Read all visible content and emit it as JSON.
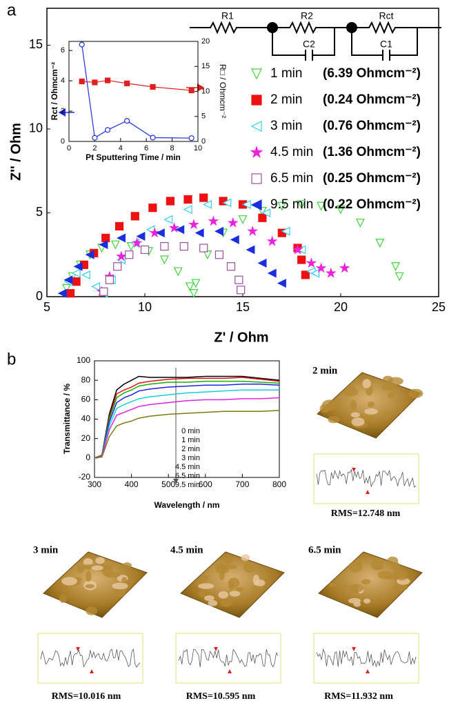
{
  "panel_labels": [
    "a",
    "b"
  ],
  "circuit": {
    "labels": [
      "R1",
      "R2",
      "Rct",
      "C2",
      "C1"
    ]
  },
  "chart_data": [
    {
      "type": "scatter",
      "x_label": "Z' / Ohm",
      "y_label": "Z'' / Ohm",
      "xlim": [
        5,
        25
      ],
      "ylim": [
        0,
        17.2
      ],
      "xticks": [
        5,
        10,
        15,
        20,
        25
      ],
      "yticks": [
        0,
        5,
        10,
        15
      ],
      "series": [
        {
          "name": "1 min",
          "resistance_label": "(6.39 Ohmcm⁻²)",
          "color": "#3fd43a",
          "marker": "tri-down",
          "filled": false,
          "x": [
            6.0,
            6.3,
            6.7,
            7.2,
            7.8,
            8.5,
            9.3,
            10.2,
            11.0,
            11.7,
            12.3,
            12.5,
            12.6,
            13.2,
            14.0,
            15.0,
            16.0,
            17.0,
            18.0,
            19.0,
            20.0,
            21.0,
            22.0,
            22.8,
            23.0
          ],
          "values": [
            0.5,
            1.2,
            1.9,
            2.5,
            2.9,
            3.1,
            3.0,
            2.7,
            2.2,
            1.5,
            0.6,
            0.2,
            0.8,
            2.5,
            3.8,
            4.6,
            5.1,
            5.4,
            5.5,
            5.4,
            5.2,
            4.4,
            3.2,
            1.8,
            1.2
          ]
        },
        {
          "name": "2 min",
          "resistance_label": "(0.24 Ohmcm⁻²)",
          "color": "#ee1111",
          "marker": "square",
          "filled": true,
          "x": [
            6.2,
            6.5,
            6.9,
            7.4,
            8.0,
            8.7,
            9.5,
            10.4,
            11.3,
            12.2,
            13.0,
            14.0,
            15.0,
            16.0,
            17.0,
            17.8,
            18.0,
            18.2
          ],
          "values": [
            0.2,
            0.9,
            1.9,
            2.6,
            3.5,
            4.2,
            4.8,
            5.3,
            5.7,
            5.8,
            5.9,
            5.7,
            5.5,
            4.7,
            3.8,
            2.9,
            2.2,
            1.3
          ]
        },
        {
          "name": "3 min",
          "resistance_label": "(0.76 Ohmcm⁻²)",
          "color": "#30d0ee",
          "marker": "tri-left",
          "filled": false,
          "x": [
            5.8,
            6.1,
            6.5,
            7.0,
            7.5,
            7.9,
            8.3,
            8.8,
            9.5,
            10.3,
            11.2,
            12.2,
            13.2,
            14.2,
            15.2,
            16.2,
            17.2,
            18.0,
            18.5,
            18.7
          ],
          "values": [
            0.2,
            0.9,
            1.4,
            1.3,
            0.6,
            0.2,
            1.0,
            2.2,
            3.2,
            4.0,
            4.6,
            5.2,
            5.5,
            5.6,
            5.5,
            5.0,
            3.9,
            2.8,
            1.5,
            1.4
          ]
        },
        {
          "name": "4.5 min",
          "resistance_label": "(1.36 Ohmcm⁻²)",
          "color": "#ee22dd",
          "marker": "star",
          "filled": true,
          "x": [
            7.8,
            8.2,
            8.8,
            9.6,
            10.5,
            11.5,
            12.5,
            13.5,
            14.5,
            15.5,
            16.5,
            17.8,
            18.5,
            19.0,
            19.5,
            20.2
          ],
          "values": [
            0.3,
            1.2,
            2.4,
            3.2,
            3.8,
            4.1,
            4.3,
            4.5,
            4.4,
            3.9,
            3.3,
            2.8,
            2.0,
            1.7,
            1.4,
            1.7
          ]
        },
        {
          "name": "6.5 min",
          "resistance_label": "(0.25 Ohmcm⁻²)",
          "color": "#9b4f9b",
          "marker": "square",
          "filled": false,
          "x": [
            7.9,
            8.2,
            8.6,
            9.2,
            10.0,
            11.0,
            12.0,
            13.0,
            13.8,
            14.4,
            14.8,
            14.9
          ],
          "values": [
            0.3,
            1.0,
            1.8,
            2.5,
            2.8,
            3.0,
            3.0,
            2.9,
            2.5,
            1.8,
            1.0,
            0.4
          ]
        },
        {
          "name": "9.5 min",
          "resistance_label": "(0.22 Ohmcm⁻²)",
          "color": "#1a2ee0",
          "marker": "tri-left",
          "filled": true,
          "x": [
            5.8,
            6.1,
            6.6,
            7.2,
            7.9,
            8.8,
            9.8,
            10.8,
            11.8,
            12.8,
            13.8,
            14.6,
            15.4,
            16.0,
            16.5,
            17.0
          ],
          "values": [
            0.2,
            1.0,
            1.8,
            2.5,
            3.1,
            3.5,
            3.6,
            3.8,
            4.0,
            3.8,
            3.9,
            3.4,
            2.8,
            2.0,
            1.4,
            0.8
          ]
        }
      ]
    },
    {
      "type": "line",
      "x_label": "Pt Sputtering Time / min",
      "y_label": "Rct / Ohmcm⁻²",
      "y2_label": "R□ / Ohmcm⁻²",
      "xlim": [
        0,
        10
      ],
      "ylim": [
        0,
        6.6
      ],
      "y2lim": [
        0,
        20
      ],
      "xticks": [
        0,
        2,
        4,
        6,
        8,
        10
      ],
      "yticks": [
        0,
        2,
        4,
        6
      ],
      "y2ticks": [
        0,
        5,
        10,
        15,
        20
      ],
      "x": [
        1,
        2,
        3,
        4.5,
        6.5,
        9.5
      ],
      "series": [
        {
          "color": "#2030e0",
          "marker": "circle",
          "filled": false,
          "values": [
            6.39,
            0.24,
            0.76,
            1.36,
            0.25,
            0.22
          ]
        },
        {
          "color": "#e02020",
          "marker": "square",
          "filled": true,
          "axis": "y2",
          "values": [
            12.0,
            11.8,
            12.2,
            11.6,
            10.9,
            10.2
          ]
        }
      ]
    },
    {
      "type": "line",
      "x_label": "Wavelength / nm",
      "y_label": "Transmittance / %",
      "xlim": [
        300,
        800
      ],
      "ylim": [
        -20,
        100
      ],
      "xticks": [
        300,
        400,
        500,
        600,
        700,
        800
      ],
      "yticks": [
        -20,
        0,
        20,
        40,
        60,
        80,
        100
      ],
      "x": [
        300,
        320,
        340,
        360,
        380,
        400,
        420,
        450,
        500,
        550,
        600,
        650,
        700,
        750,
        800
      ],
      "series": [
        {
          "name": "0 min",
          "color": "#000000",
          "values": [
            0,
            3,
            45,
            70,
            76,
            80,
            84,
            83,
            83,
            83,
            84,
            84,
            84,
            82,
            80
          ]
        },
        {
          "name": "1 min",
          "color": "#e01010",
          "values": [
            0,
            3,
            42,
            66,
            70,
            73,
            77,
            79,
            81,
            82,
            82,
            82,
            83,
            81,
            79
          ]
        },
        {
          "name": "2 min",
          "color": "#10b010",
          "values": [
            0,
            3,
            40,
            62,
            67,
            70,
            74,
            76,
            78,
            78,
            79,
            79,
            79,
            78,
            77
          ]
        },
        {
          "name": "3 min",
          "color": "#2020e0",
          "values": [
            0,
            2,
            37,
            57,
            62,
            65,
            69,
            71,
            73,
            74,
            75,
            75,
            76,
            76,
            75
          ]
        },
        {
          "name": "4.5 min",
          "color": "#10d0e0",
          "values": [
            0,
            2,
            33,
            51,
            55,
            58,
            61,
            63,
            65,
            67,
            68,
            69,
            70,
            70,
            70
          ]
        },
        {
          "name": "6.5 min",
          "color": "#e020e0",
          "values": [
            0,
            2,
            29,
            44,
            47,
            50,
            53,
            55,
            57,
            59,
            60,
            60,
            61,
            61,
            62
          ]
        },
        {
          "name": "9.5 min",
          "color": "#7a7a10",
          "values": [
            0,
            1,
            22,
            33,
            36,
            38,
            41,
            43,
            45,
            46,
            47,
            48,
            48,
            48,
            49
          ]
        }
      ]
    }
  ],
  "afm": [
    {
      "label": "2 min",
      "rms": "RMS=12.748 nm"
    },
    {
      "label": "3 min",
      "rms": "RMS=10.016 nm"
    },
    {
      "label": "4.5 min",
      "rms": "RMS=10.595 nm"
    },
    {
      "label": "6.5 min",
      "rms": "RMS=11.932 nm"
    }
  ]
}
